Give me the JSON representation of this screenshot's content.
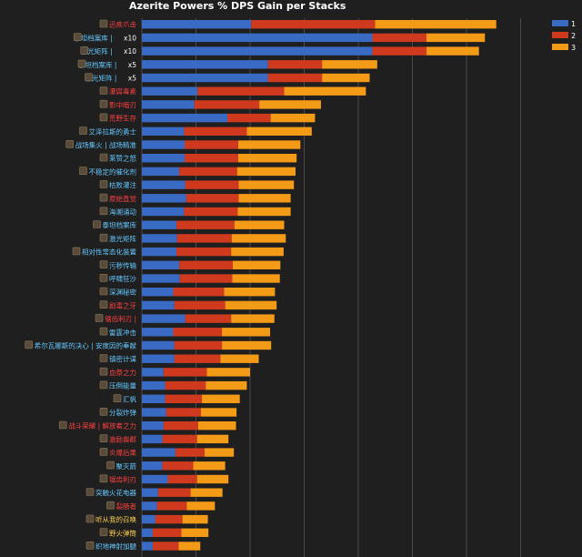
{
  "chart_data": {
    "type": "bar",
    "orientation": "horizontal",
    "stacked": true,
    "title": "Azerite Powers % DPS Gain per Stacks",
    "xlabel": "",
    "ylabel": "",
    "grid": true,
    "legend_position": "top-right",
    "series": [
      {
        "name": "1",
        "color": "#3a6bc4"
      },
      {
        "name": "2",
        "color": "#cf3a1f"
      },
      {
        "name": "3",
        "color": "#f39a17"
      }
    ],
    "categories": [
      {
        "text": "迅疾爪击",
        "color": "#ff4040"
      },
      {
        "text": "泰坦档案库 | ",
        "suffix": "x10",
        "color": "#64c8ff"
      },
      {
        "text": "激光矩阵 | ",
        "suffix": "x10",
        "color": "#64c8ff"
      },
      {
        "text": "泰坦档案库 | ",
        "suffix": "x5",
        "color": "#64c8ff"
      },
      {
        "text": "激光矩阵 | ",
        "suffix": "x5",
        "color": "#64c8ff"
      },
      {
        "text": "瀑腐毒素",
        "color": "#ff4040"
      },
      {
        "text": "影中暗刃",
        "color": "#ff4040"
      },
      {
        "text": "荒野生存",
        "color": "#ff4040"
      },
      {
        "text": "艾泽拉斯的勇士",
        "color": "#64c8ff"
      },
      {
        "text": "战场集火 | 战场精准",
        "color": "#64c8ff"
      },
      {
        "text": "莱赞之怒",
        "color": "#64c8ff"
      },
      {
        "text": "不稳定的催化剂",
        "color": "#64c8ff"
      },
      {
        "text": "枯败灌注",
        "color": "#64c8ff"
      },
      {
        "text": "原始直觉",
        "color": "#ff4040"
      },
      {
        "text": "海潮涌动",
        "color": "#64c8ff"
      },
      {
        "text": "泰坦档案库",
        "color": "#64c8ff"
      },
      {
        "text": "激光矩阵",
        "color": "#64c8ff"
      },
      {
        "text": "相对性常态化装置",
        "color": "#64c8ff"
      },
      {
        "text": "污秽传输",
        "color": "#64c8ff"
      },
      {
        "text": "呼啸狂沙",
        "color": "#64c8ff"
      },
      {
        "text": "深渊秘密",
        "color": "#64c8ff"
      },
      {
        "text": "剧毒之牙",
        "color": "#ff4040"
      },
      {
        "text": "锯齿利刃 | ",
        "color": "#ff4040"
      },
      {
        "text": "雷霆冲击",
        "color": "#64c8ff"
      },
      {
        "text": "希尔瓦娜斯的决心 | 安度因的奉献",
        "color": "#64c8ff"
      },
      {
        "text": "镇密计谋",
        "color": "#64c8ff"
      },
      {
        "text": "血祭之力",
        "color": "#ff4040"
      },
      {
        "text": "压倒能量",
        "color": "#64c8ff"
      },
      {
        "text": "汇帆",
        "color": "#64c8ff"
      },
      {
        "text": "分裂炸弹",
        "color": "#64c8ff"
      },
      {
        "text": "战斗荣耀 | 解放者之力",
        "color": "#ff4040"
      },
      {
        "text": "激励兽群",
        "color": "#ff4040"
      },
      {
        "text": "炎爆后果",
        "color": "#ff4040"
      },
      {
        "text": "聚灭箭",
        "color": "#64c8ff"
      },
      {
        "text": "锯齿利刃",
        "color": "#ff4040"
      },
      {
        "text": "突触火花电器",
        "color": "#64c8ff"
      },
      {
        "text": "裂肠者",
        "color": "#ff4040"
      },
      {
        "text": "听从我的召唤",
        "color": "#ffd24d"
      },
      {
        "text": "野火弹筒",
        "color": "#ffd24d"
      },
      {
        "text": "织地神射加腿",
        "color": "#64c8ff"
      }
    ],
    "values_series_1": [
      2.02,
      4.26,
      4.26,
      2.33,
      2.33,
      1.03,
      0.97,
      1.58,
      0.78,
      0.79,
      0.79,
      0.69,
      0.8,
      0.82,
      0.78,
      0.64,
      0.65,
      0.64,
      0.69,
      0.7,
      0.58,
      0.6,
      0.8,
      0.58,
      0.6,
      0.6,
      0.4,
      0.43,
      0.43,
      0.45,
      0.4,
      0.38,
      0.62,
      0.38,
      0.48,
      0.3,
      0.28,
      0.25,
      0.2,
      0.2
    ],
    "values_series_2": [
      2.29,
      1.0,
      1.0,
      1.0,
      1.0,
      1.6,
      1.2,
      0.8,
      1.16,
      0.99,
      0.99,
      1.07,
      0.99,
      0.97,
      0.99,
      1.07,
      1.01,
      1.01,
      0.99,
      0.97,
      0.94,
      0.94,
      0.85,
      0.9,
      0.88,
      0.85,
      0.8,
      0.75,
      0.68,
      0.64,
      0.64,
      0.64,
      0.54,
      0.57,
      0.54,
      0.6,
      0.55,
      0.5,
      0.53,
      0.48
    ],
    "values_series_3": [
      2.24,
      1.08,
      0.97,
      1.02,
      0.88,
      1.51,
      1.14,
      0.82,
      1.2,
      1.15,
      1.08,
      1.08,
      1.02,
      0.96,
      0.98,
      0.92,
      1.0,
      0.97,
      0.88,
      0.88,
      0.94,
      0.95,
      0.8,
      0.89,
      0.91,
      0.71,
      0.8,
      0.76,
      0.7,
      0.66,
      0.7,
      0.58,
      0.54,
      0.59,
      0.58,
      0.59,
      0.52,
      0.47,
      0.5,
      0.4
    ],
    "xlim": [
      0,
      7.0
    ],
    "x_gridlines": [
      0,
      1.0,
      2.0,
      3.0,
      4.0,
      5.0,
      6.0,
      7.0
    ]
  }
}
